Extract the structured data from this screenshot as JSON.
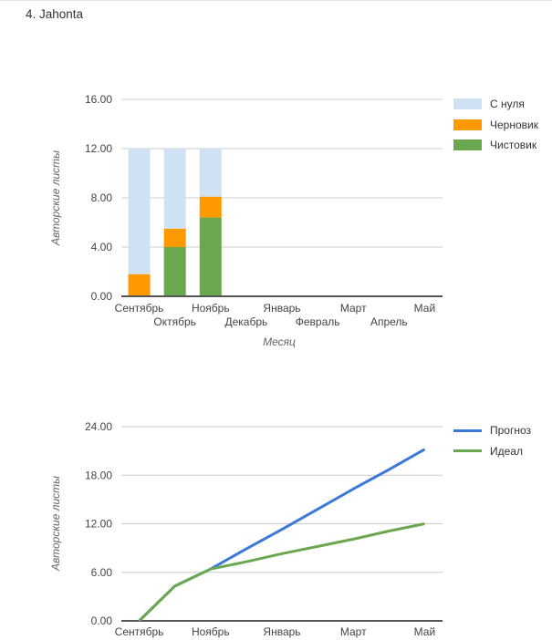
{
  "page": {
    "heading": "4. Jahonta"
  },
  "colors": {
    "grid": "#cccccc",
    "baseline": "#555555",
    "tick_text": "#444444",
    "axis_title_text": "#666666"
  },
  "chart_data": [
    {
      "type": "bar",
      "stacked": true,
      "categories": [
        "Сентябрь",
        "Октябрь",
        "Ноябрь",
        "Декабрь",
        "Январь",
        "Февраль",
        "Март",
        "Апрель",
        "Май"
      ],
      "series": [
        {
          "name": "С нуля",
          "color": "#cfe2f3",
          "values": [
            10.2,
            6.5,
            3.9,
            0,
            0,
            0,
            0,
            0,
            0
          ]
        },
        {
          "name": "Черновик",
          "color": "#ff9900",
          "values": [
            1.8,
            1.5,
            1.7,
            0,
            0,
            0,
            0,
            0,
            0
          ]
        },
        {
          "name": "Чистовик",
          "color": "#6aa84f",
          "values": [
            0,
            4.0,
            6.4,
            0,
            0,
            0,
            0,
            0,
            0
          ]
        }
      ],
      "stack_order_bottom_to_top": [
        "Чистовик",
        "Черновик",
        "С нуля"
      ],
      "xlabel": "Месяц",
      "ylabel": "Авторские листы",
      "ylim": [
        0,
        16
      ],
      "yticks": [
        "0.00",
        "4.00",
        "8.00",
        "12.00",
        "16.00"
      ],
      "x_labels_staggered": true,
      "legend_position": "right",
      "grid": true
    },
    {
      "type": "line",
      "categories": [
        "Сентябрь",
        "Октябрь",
        "Ноябрь",
        "Декабрь",
        "Январь",
        "Февраль",
        "Март",
        "Апрель",
        "Май"
      ],
      "x_tick_labels": [
        "Сентябрь",
        "Ноябрь",
        "Январь",
        "Март",
        "Май"
      ],
      "x_tick_step": 2,
      "series": [
        {
          "name": "Прогноз",
          "color": "#3c78d8",
          "values": [
            0,
            4.3,
            6.4,
            8.9,
            11.3,
            13.8,
            16.3,
            18.7,
            21.2
          ]
        },
        {
          "name": "Идеал",
          "color": "#6aa84f",
          "values": [
            0,
            4.3,
            6.4,
            7.3,
            8.3,
            9.2,
            10.1,
            11.1,
            12.0
          ]
        }
      ],
      "xlabel": "",
      "ylabel": "Авторские листы",
      "ylim": [
        0,
        24
      ],
      "yticks": [
        "0.00",
        "6.00",
        "12.00",
        "18.00",
        "24.00"
      ],
      "legend_position": "right",
      "grid": true
    }
  ]
}
